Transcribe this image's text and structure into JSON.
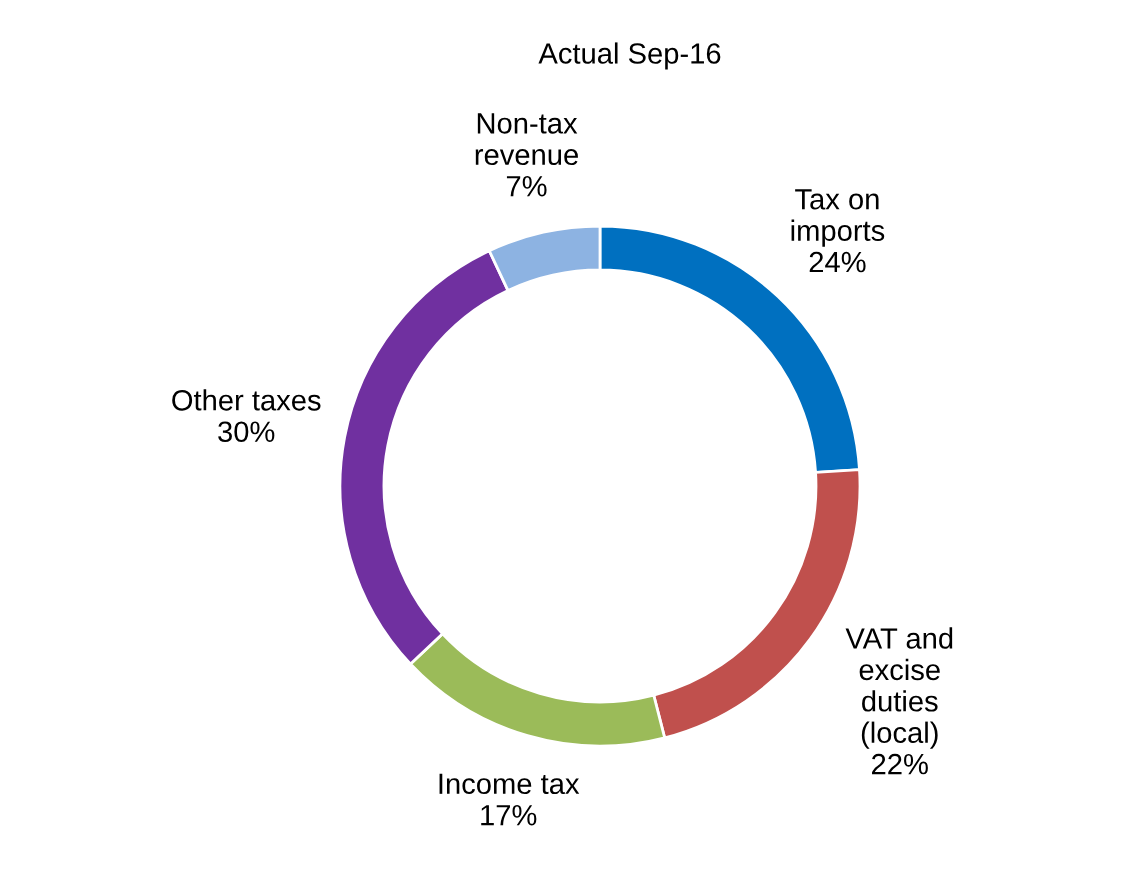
{
  "chart_data": {
    "type": "donut",
    "title": "Actual Sep-16",
    "categories": [
      "Tax on\nimports",
      "VAT and\nexcise\nduties\n(local)",
      "Income tax",
      "Other taxes",
      "Non-tax\nrevenue"
    ],
    "values": [
      24,
      22,
      17,
      30,
      7
    ],
    "colors": [
      "#0070c0",
      "#c0504d",
      "#9bbb59",
      "#7030a0",
      "#8db3e2"
    ],
    "value_labels": [
      "24%",
      "22%",
      "17%",
      "30%",
      "7%"
    ],
    "legend": false
  }
}
